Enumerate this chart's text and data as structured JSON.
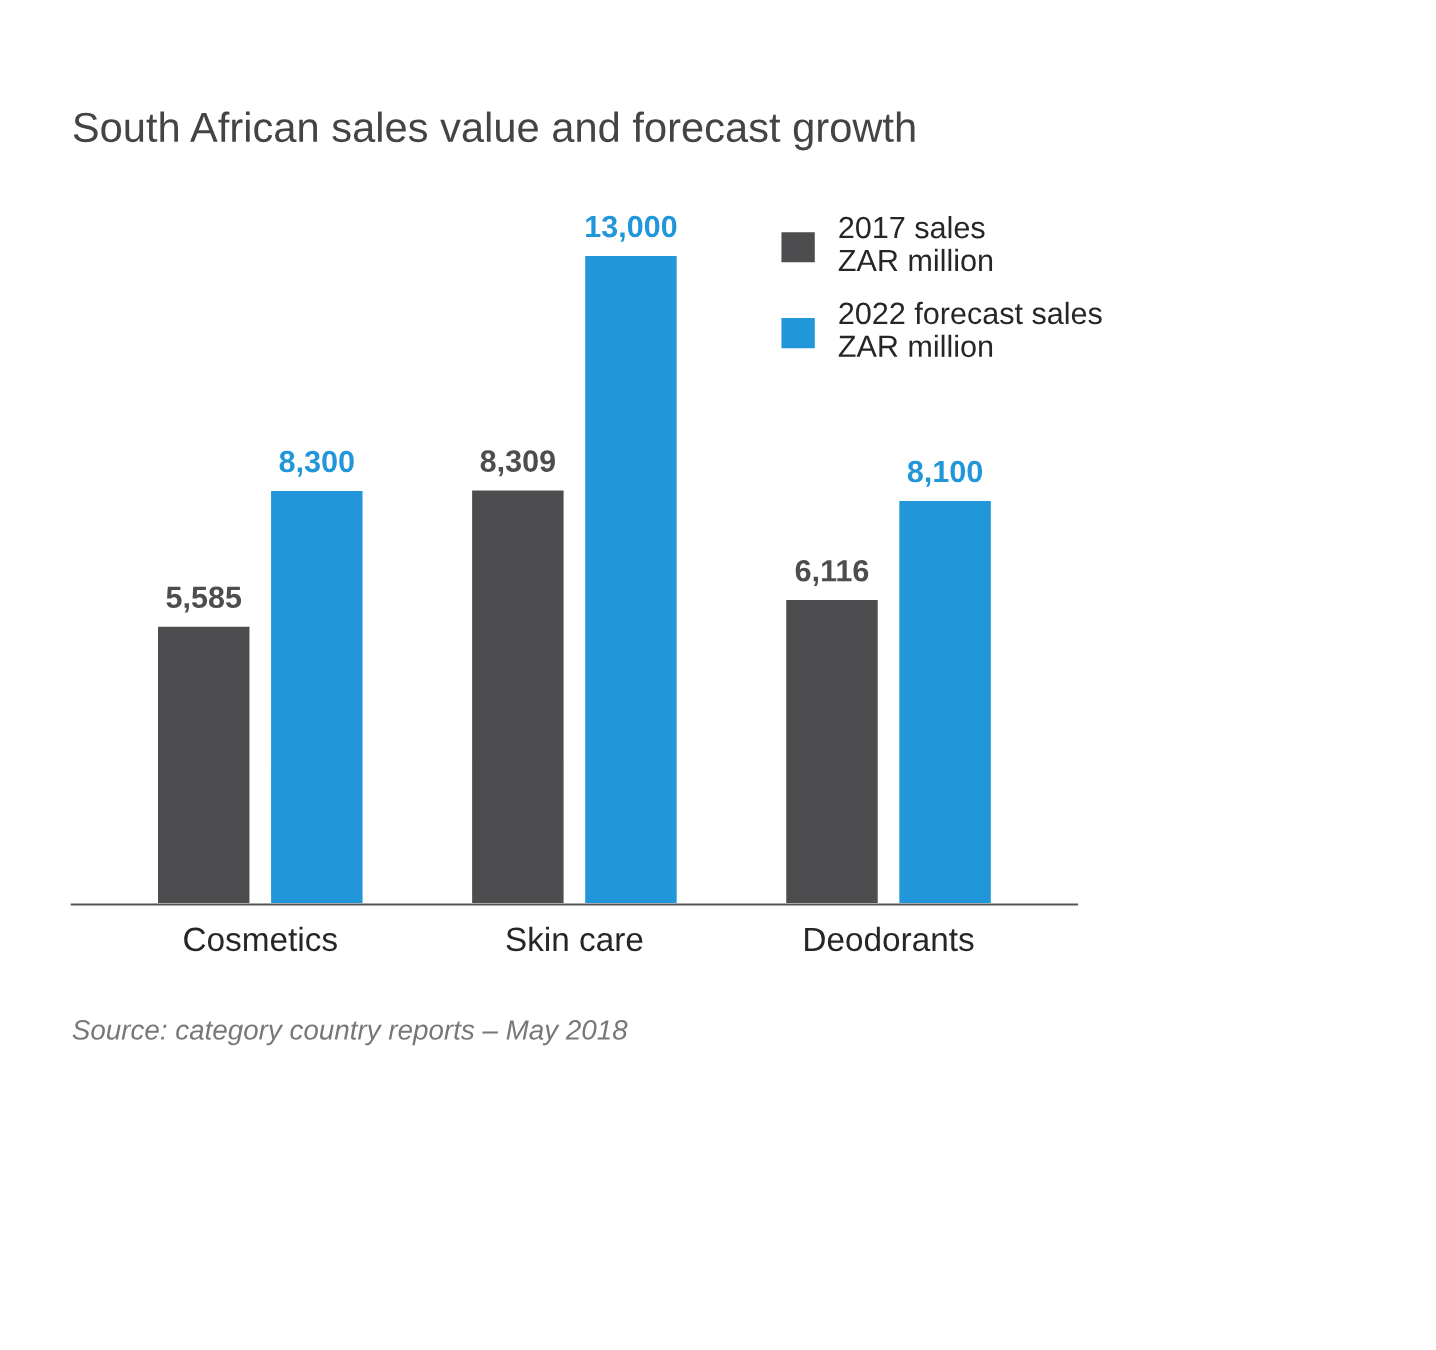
{
  "chart_data": {
    "type": "bar",
    "title": "South African sales value and forecast growth",
    "categories": [
      "Cosmetics",
      "Skin care",
      "Deodorants"
    ],
    "series": [
      {
        "name": "2017 sales\nZAR million",
        "color": "#4d4d4f",
        "values": [
          5585,
          8309,
          6116
        ],
        "value_labels": [
          "5,585",
          "8,309",
          "6,116"
        ]
      },
      {
        "name": "2022 forecast sales\nZAR million",
        "color": "#2196d9",
        "values": [
          8300,
          13000,
          8100
        ],
        "value_labels": [
          "8,300",
          "13,000",
          "8,100"
        ]
      }
    ],
    "legend": "top right",
    "grid": false,
    "annotations": [
      "Source: category country reports – May 2018"
    ]
  }
}
